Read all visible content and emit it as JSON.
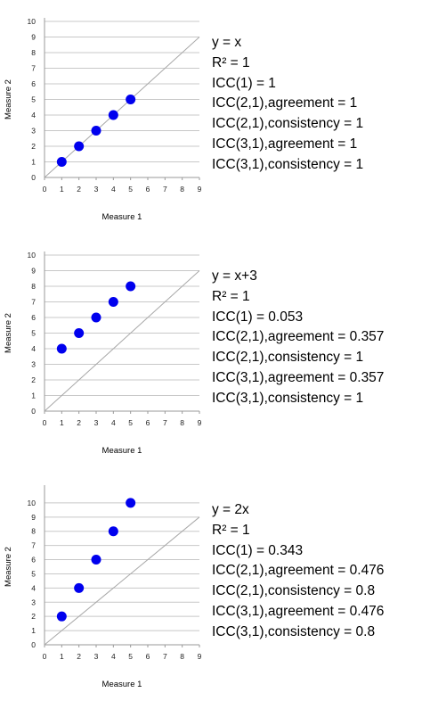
{
  "chart_data": [
    {
      "type": "scatter",
      "xlabel": "Measure 1",
      "ylabel": "Measure 2",
      "xlim": [
        0,
        9
      ],
      "ylim": [
        0,
        10
      ],
      "x_ticks": [
        0,
        1,
        2,
        3,
        4,
        5,
        6,
        7,
        8,
        9
      ],
      "y_ticks": [
        0,
        1,
        2,
        3,
        4,
        5,
        6,
        7,
        8,
        9,
        10
      ],
      "grid": "horizontal",
      "reference_line": "y = x",
      "point_color": "#0000ee",
      "series": [
        {
          "x": [
            1,
            2,
            3,
            4,
            5
          ],
          "y": [
            1,
            2,
            3,
            4,
            5
          ]
        }
      ],
      "annotations": [
        "y = x",
        "R² = 1",
        "ICC(1) = 1",
        "ICC(2,1),agreement = 1",
        "ICC(2,1),consistency = 1",
        "ICC(3,1),agreement = 1",
        "ICC(3,1),consistency = 1"
      ]
    },
    {
      "type": "scatter",
      "xlabel": "Measure 1",
      "ylabel": "Measure 2",
      "xlim": [
        0,
        9
      ],
      "ylim": [
        0,
        10
      ],
      "x_ticks": [
        0,
        1,
        2,
        3,
        4,
        5,
        6,
        7,
        8,
        9
      ],
      "y_ticks": [
        0,
        1,
        2,
        3,
        4,
        5,
        6,
        7,
        8,
        9,
        10
      ],
      "grid": "horizontal",
      "reference_line": "y = x",
      "point_color": "#0000ee",
      "series": [
        {
          "x": [
            1,
            2,
            3,
            4,
            5
          ],
          "y": [
            4,
            5,
            6,
            7,
            8
          ]
        }
      ],
      "annotations": [
        "y = x+3",
        "R² = 1",
        "ICC(1) = 0.053",
        "ICC(2,1),agreement = 0.357",
        "ICC(2,1),consistency = 1",
        "ICC(3,1),agreement = 0.357",
        "ICC(3,1),consistency = 1"
      ]
    },
    {
      "type": "scatter",
      "xlabel": "Measure 1",
      "ylabel": "Measure 2",
      "xlim": [
        0,
        9
      ],
      "ylim": [
        0,
        11
      ],
      "x_ticks": [
        0,
        1,
        2,
        3,
        4,
        5,
        6,
        7,
        8,
        9
      ],
      "y_ticks": [
        0,
        1,
        2,
        3,
        4,
        5,
        6,
        7,
        8,
        9,
        10
      ],
      "grid": "horizontal",
      "reference_line": "y = x",
      "point_color": "#0000ee",
      "series": [
        {
          "x": [
            1,
            2,
            3,
            4,
            5
          ],
          "y": [
            2,
            4,
            6,
            8,
            10
          ]
        }
      ],
      "annotations": [
        "y = 2x",
        "R² = 1",
        "ICC(1) = 0.343",
        "ICC(2,1),agreement = 0.476",
        "ICC(2,1),consistency = 0.8",
        "ICC(3,1),agreement = 0.476",
        "ICC(3,1),consistency = 0.8"
      ]
    }
  ]
}
